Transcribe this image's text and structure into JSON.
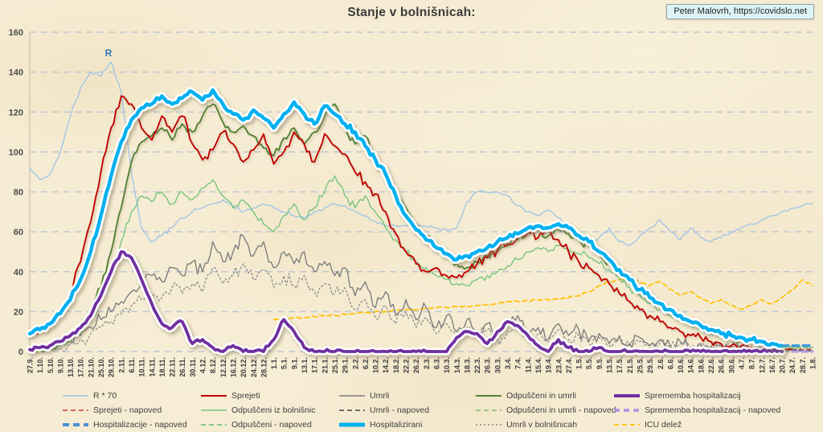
{
  "page": {
    "title": "Stanje v bolnišnicah:",
    "credit": "Peter Malovrh, https://covidslo.net"
  },
  "colors": {
    "background": "#f6ecd3",
    "grid": "#bdc7d5",
    "axis": "#c9c1ab",
    "title_text": "#3b3b3b",
    "tick_text": "#404040",
    "credit_bg": "#ddf3f6"
  },
  "chart_data": {
    "type": "line",
    "title": "Stanje v bolnišnicah:",
    "xlabel": "",
    "ylabel": "",
    "ylim": [
      0,
      160
    ],
    "ytick_step": 20,
    "grid": "horizontal-dashed",
    "legend_position": "bottom",
    "annotation": {
      "text": "R",
      "x_tick": 7.4,
      "y_value": 148,
      "color": "#2e75b6"
    },
    "x_tick_labels": [
      "27.9.",
      "1.10.",
      "5.10.",
      "9.10.",
      "13.10.",
      "17.10.",
      "21.10.",
      "25.10.",
      "29.10.",
      "2.11.",
      "6.11.",
      "10.11.",
      "14.11.",
      "18.11.",
      "22.11.",
      "26.11.",
      "30.11.",
      "4.12.",
      "8.12.",
      "12.12.",
      "16.12.",
      "20.12.",
      "24.12.",
      "28.12.",
      "1.1.",
      "5.1.",
      "9.1.",
      "13.1.",
      "17.1.",
      "21.1.",
      "25.1.",
      "29.1.",
      "2.2.",
      "6.2.",
      "10.2.",
      "14.2.",
      "18.2.",
      "22.2.",
      "26.2.",
      "2.3.",
      "6.3.",
      "10.3.",
      "14.3.",
      "18.3.",
      "22.3.",
      "26.3.",
      "30.3.",
      "3.4.",
      "7.4.",
      "11.4.",
      "15.4.",
      "19.4.",
      "23.4.",
      "27.4.",
      "1.5.",
      "5.5.",
      "9.5.",
      "13.5.",
      "17.5.",
      "21.5.",
      "25.5.",
      "29.5.",
      "2.6.",
      "6.6.",
      "10.6.",
      "14.6.",
      "18.6.",
      "22.6.",
      "26.6.",
      "30.6.",
      "4.7.",
      "8.7.",
      "12.7.",
      "16.7.",
      "20.7.",
      "24.7.",
      "28.7.",
      "1.8."
    ],
    "series": [
      {
        "key": "r70",
        "label": "R * 70",
        "color": "#9dc3e6",
        "width": 1.3,
        "jitter": 1.2,
        "start": 0,
        "values": [
          92,
          86,
          89,
          100,
          118,
          132,
          140,
          138,
          145,
          130,
          90,
          62,
          55,
          58,
          62,
          67,
          70,
          72,
          74,
          76,
          73,
          70,
          72,
          74,
          72,
          70,
          68,
          67,
          70,
          72,
          74,
          73,
          70,
          68,
          65,
          63,
          63,
          63,
          63,
          63,
          62,
          61,
          62,
          75,
          80,
          80,
          80,
          78,
          73,
          70,
          68,
          71,
          67,
          63,
          60,
          55,
          57,
          62,
          55,
          53,
          58,
          62,
          66,
          60,
          56,
          62,
          57,
          55,
          57,
          60,
          62,
          64,
          66,
          68,
          70,
          72,
          73,
          74
        ]
      },
      {
        "key": "icu_delez",
        "label": "ICU delež",
        "color": "#ffc000",
        "width": 1.7,
        "dash": "6 4",
        "jitter": 0.7,
        "start": 24,
        "values": [
          16,
          16,
          17,
          17,
          17.5,
          18,
          18,
          18.5,
          19,
          19.5,
          20,
          20,
          20.5,
          21,
          21,
          21.5,
          22,
          22,
          22.5,
          23,
          23,
          23.5,
          24,
          25,
          25,
          25.5,
          26,
          26,
          26.5,
          27,
          28,
          30,
          33,
          35,
          36,
          37,
          35,
          33,
          35,
          31,
          28,
          30,
          27,
          24,
          26,
          23,
          21,
          23,
          26,
          24,
          27,
          31,
          36,
          33
        ]
      },
      {
        "key": "umrli_v_bolnisnicah",
        "label": "Umrli v bolnišnicah",
        "color": "#8c8c8c",
        "width": 1.3,
        "dash": "2 3",
        "jitter": 4,
        "start": 0,
        "values": [
          1,
          1,
          1,
          2,
          4,
          6,
          9,
          12,
          15,
          19,
          23,
          26,
          29,
          27,
          32,
          29,
          34,
          30,
          42,
          34,
          38,
          44,
          36,
          41,
          32,
          38,
          33,
          38,
          30,
          34,
          29,
          32,
          21,
          26,
          17,
          23,
          14,
          20,
          12,
          17,
          9,
          14,
          8,
          12,
          7,
          11,
          6,
          10,
          14,
          6,
          9,
          5,
          11,
          6,
          8,
          4,
          7,
          3,
          6,
          3,
          5,
          2,
          5,
          2,
          4,
          2,
          3,
          1,
          3,
          1,
          2,
          1,
          1,
          1,
          1,
          0.5,
          0.5,
          0.5
        ]
      },
      {
        "key": "umrli",
        "label": "Umrli",
        "color": "#7f7f7f",
        "width": 1.4,
        "jitter": 4.5,
        "start": 0,
        "values": [
          1,
          1,
          2,
          3,
          5,
          8,
          12,
          16,
          20,
          25,
          30,
          35,
          38,
          35,
          42,
          38,
          45,
          40,
          55,
          45,
          50,
          58,
          48,
          55,
          42,
          50,
          44,
          50,
          40,
          45,
          38,
          42,
          28,
          35,
          22,
          30,
          18,
          26,
          16,
          22,
          12,
          18,
          10,
          16,
          9,
          14,
          8,
          13,
          18,
          8,
          12,
          6,
          14,
          8,
          11,
          5,
          9,
          4,
          8,
          4,
          7,
          3,
          6,
          3,
          5,
          2,
          4,
          2,
          4,
          1,
          3,
          1,
          2,
          1,
          1,
          1,
          null,
          null
        ]
      },
      {
        "key": "odpusceni_iz_bolnisnic",
        "label": "Odpuščeni iz bolnišnic",
        "color": "#77c57f",
        "width": 1.4,
        "jitter": 2.5,
        "start": 0,
        "values": [
          0,
          1,
          1,
          3,
          5,
          9,
          15,
          24,
          38,
          55,
          70,
          78,
          75,
          80,
          74,
          80,
          76,
          82,
          86,
          78,
          72,
          76,
          70,
          64,
          60,
          68,
          74,
          66,
          72,
          80,
          88,
          78,
          72,
          78,
          70,
          62,
          56,
          50,
          45,
          42,
          38,
          36,
          34,
          33,
          36,
          38,
          40,
          43,
          46,
          50,
          52,
          50,
          53,
          51,
          49,
          47,
          44,
          41,
          37,
          32,
          28,
          24,
          21,
          18,
          16,
          13,
          11,
          9,
          8,
          7,
          6,
          5,
          4,
          3,
          2,
          null,
          null,
          null
        ]
      },
      {
        "key": "odpusceni_in_umrli",
        "label": "Odpuščeni in umrli",
        "color": "#538135",
        "width": 1.9,
        "jitter": 2.5,
        "shadow": true,
        "start": 0,
        "values": [
          0,
          1,
          2,
          4,
          7,
          12,
          20,
          32,
          50,
          72,
          95,
          105,
          108,
          112,
          106,
          114,
          110,
          118,
          124,
          115,
          110,
          113,
          108,
          102,
          98,
          107,
          112,
          104,
          110,
          118,
          124,
          112,
          104,
          108,
          98,
          88,
          80,
          72,
          64,
          58,
          52,
          48,
          44,
          42,
          45,
          48,
          50,
          53,
          56,
          59,
          61,
          58,
          61,
          59,
          56,
          53,
          49,
          45,
          40,
          35,
          30,
          26,
          23,
          20,
          17,
          14,
          12,
          10,
          8,
          7,
          6,
          5,
          4,
          3,
          3,
          null,
          null,
          null
        ]
      },
      {
        "key": "sprejeti",
        "label": "Sprejeti",
        "color": "#c00000",
        "width": 1.9,
        "jitter": 3,
        "shadow": true,
        "start": 0,
        "values": [
          8,
          10,
          13,
          18,
          30,
          45,
          65,
          90,
          112,
          128,
          124,
          112,
          106,
          118,
          110,
          118,
          104,
          96,
          101,
          110,
          104,
          95,
          101,
          109,
          94,
          100,
          110,
          104,
          95,
          109,
          103,
          99,
          90,
          85,
          79,
          70,
          59,
          50,
          44,
          40,
          42,
          38,
          37,
          40,
          44,
          47,
          51,
          54,
          57,
          60,
          57,
          61,
          56,
          50,
          45,
          42,
          38,
          34,
          29,
          25,
          21,
          18,
          15,
          12,
          10,
          8,
          7,
          5,
          4,
          3,
          3,
          2,
          2,
          1,
          1,
          1,
          null,
          null
        ]
      },
      {
        "key": "sprememba_hospitalizacij",
        "label": "Sprememba hospitalizacij",
        "color": "#7030a0",
        "width": 3.8,
        "jitter": 1.2,
        "glow": true,
        "start": 0,
        "values": [
          1,
          2,
          3,
          5,
          8,
          12,
          18,
          28,
          40,
          50,
          47,
          36,
          24,
          14,
          12,
          15,
          4,
          6,
          2,
          0,
          3,
          0,
          0,
          0,
          6,
          16,
          10,
          2,
          0,
          0,
          0,
          0,
          0,
          0,
          0,
          0,
          0,
          0,
          0,
          0,
          0,
          0,
          7,
          10,
          9,
          4,
          10,
          15,
          13,
          8,
          3,
          0,
          6,
          2,
          0,
          0,
          2,
          0,
          0,
          0,
          0,
          0,
          0,
          0,
          0,
          0,
          0,
          0,
          0,
          0,
          0,
          0,
          0,
          0,
          0,
          null,
          null,
          null
        ]
      },
      {
        "key": "hospitalizirani",
        "label": "Hospitalizirani",
        "color": "#00b0f0",
        "width": 4.4,
        "jitter": 1.8,
        "glow": true,
        "start": 0,
        "values": [
          9,
          11,
          14,
          19,
          26,
          36,
          50,
          68,
          88,
          105,
          116,
          122,
          124,
          128,
          124,
          127,
          130,
          126,
          131,
          124,
          119,
          116,
          121,
          117,
          112,
          119,
          125,
          119,
          114,
          123,
          119,
          114,
          110,
          103,
          96,
          89,
          78,
          68,
          61,
          56,
          52,
          49,
          46,
          48,
          50,
          52,
          55,
          57,
          59,
          62,
          63,
          62,
          64,
          62,
          58,
          55,
          50,
          46,
          41,
          36,
          31,
          27,
          24,
          21,
          18,
          15,
          13,
          11,
          9,
          8,
          7,
          6,
          5,
          4,
          3,
          null,
          null,
          null
        ]
      },
      {
        "key": "sprejeti_napoved",
        "label": "Sprejeti - napoved",
        "color": "#c55a5a",
        "width": 1.8,
        "dash": "5 4",
        "jitter": 0,
        "start": 75,
        "values": [
          1,
          1,
          1
        ]
      },
      {
        "key": "umrli_napoved",
        "label": "Umrli - napoved",
        "color": "#595959",
        "width": 1.8,
        "dash": "5 4",
        "jitter": 0,
        "start": 75,
        "values": [
          1,
          0.5,
          0.5
        ]
      },
      {
        "key": "odpusceni_napoved",
        "label": "Odpuščeni - napoved",
        "color": "#77c57f",
        "width": 1.8,
        "dash": "5 4",
        "jitter": 0,
        "start": 74,
        "values": [
          2,
          2,
          2,
          2
        ]
      },
      {
        "key": "odpusceni_in_umrli_napoved",
        "label": "Odpuščeni in umrli - napoved",
        "color": "#8fbf72",
        "width": 1.8,
        "dash": "5 4",
        "jitter": 0,
        "start": 74,
        "values": [
          3,
          2,
          2,
          2
        ]
      },
      {
        "key": "sprememba_hospitalizacij_napoved",
        "label": "Sprememba hospitalizacij - napoved",
        "color": "#b49be0",
        "width": 3,
        "dash": "7 5",
        "jitter": 0,
        "start": 75,
        "values": [
          0,
          0,
          0
        ]
      },
      {
        "key": "hospitalizacije_napoved",
        "label": "Hospitalizacije - napoved",
        "color": "#3b9bd8",
        "width": 3.2,
        "dash": "8 5",
        "jitter": 0,
        "start": 74,
        "values": [
          3,
          3,
          3,
          3
        ]
      }
    ],
    "legend": [
      {
        "label": "R * 70",
        "color": "#9dc3e6",
        "width": 1.5,
        "dash": ""
      },
      {
        "label": "Sprejeti",
        "color": "#c00000",
        "width": 2,
        "dash": ""
      },
      {
        "label": "Umrli",
        "color": "#7f7f7f",
        "width": 1.5,
        "dash": ""
      },
      {
        "label": "Odpuščeni in umrli",
        "color": "#538135",
        "width": 2,
        "dash": ""
      },
      {
        "label": "Sprememba hospitalizacij",
        "color": "#7030a0",
        "width": 4,
        "dash": ""
      },
      {
        "label": "Sprejeti - napoved",
        "color": "#c55a5a",
        "width": 1.8,
        "dash": "6 4"
      },
      {
        "label": "Odpuščeni iz bolnišnic",
        "color": "#77c57f",
        "width": 1.5,
        "dash": ""
      },
      {
        "label": "Umrli - napoved",
        "color": "#595959",
        "width": 1.8,
        "dash": "6 4"
      },
      {
        "label": "Odpuščeni in umrli - napoved",
        "color": "#8fbf72",
        "width": 1.8,
        "dash": "6 4"
      },
      {
        "label": "Sprememba hospitalizacij - napoved",
        "color": "#b49be0",
        "width": 4,
        "dash": "7 5"
      },
      {
        "label": "Hospitalizacije - napoved",
        "color": "#4a90d9",
        "width": 4,
        "dash": "8 5"
      },
      {
        "label": "Odpuščeni - napoved",
        "color": "#77c57f",
        "width": 1.8,
        "dash": "6 4"
      },
      {
        "label": "Hospitalizirani",
        "color": "#00b0f0",
        "width": 5,
        "dash": ""
      },
      {
        "label": "Umrli v bolnišnicah",
        "color": "#8c8c8c",
        "width": 1.5,
        "dash": "2 3"
      },
      {
        "label": "ICU delež",
        "color": "#ffc000",
        "width": 1.8,
        "dash": "6 4"
      }
    ]
  }
}
